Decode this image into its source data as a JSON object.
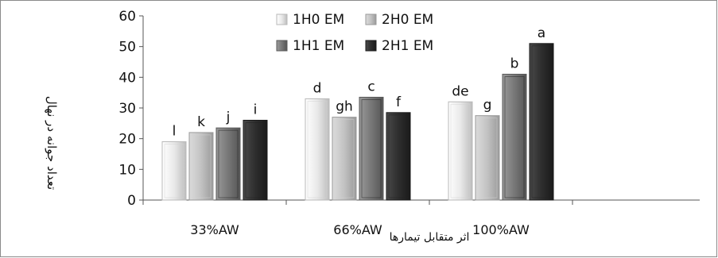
{
  "chart_data": {
    "type": "bar",
    "title": "",
    "xlabel": "اثر متقابل تیمارها",
    "ylabel": "تعداد جوانه در نهال",
    "ylim": [
      0,
      60
    ],
    "yticks": [
      0,
      10,
      20,
      30,
      40,
      50,
      60
    ],
    "categories": [
      "33%AW",
      "66%AW",
      "100%AW"
    ],
    "legend_position": "top-center",
    "series": [
      {
        "name": "1H0 EM",
        "color": "#e6e6e6",
        "values": [
          19,
          33,
          32
        ],
        "labels": [
          "l",
          "d",
          "de"
        ]
      },
      {
        "name": "2H0 EM",
        "color": "#c4c4c4",
        "values": [
          22,
          27,
          27.5
        ],
        "labels": [
          "k",
          "gh",
          "g"
        ]
      },
      {
        "name": "1H1 EM",
        "color": "#7a7a7a",
        "values": [
          23.5,
          33.5,
          41
        ],
        "labels": [
          "j",
          "c",
          "b"
        ]
      },
      {
        "name": "2H1 EM",
        "color": "#2e2e2e",
        "values": [
          26,
          28.5,
          51
        ],
        "labels": [
          "i",
          "f",
          "a"
        ]
      }
    ]
  }
}
